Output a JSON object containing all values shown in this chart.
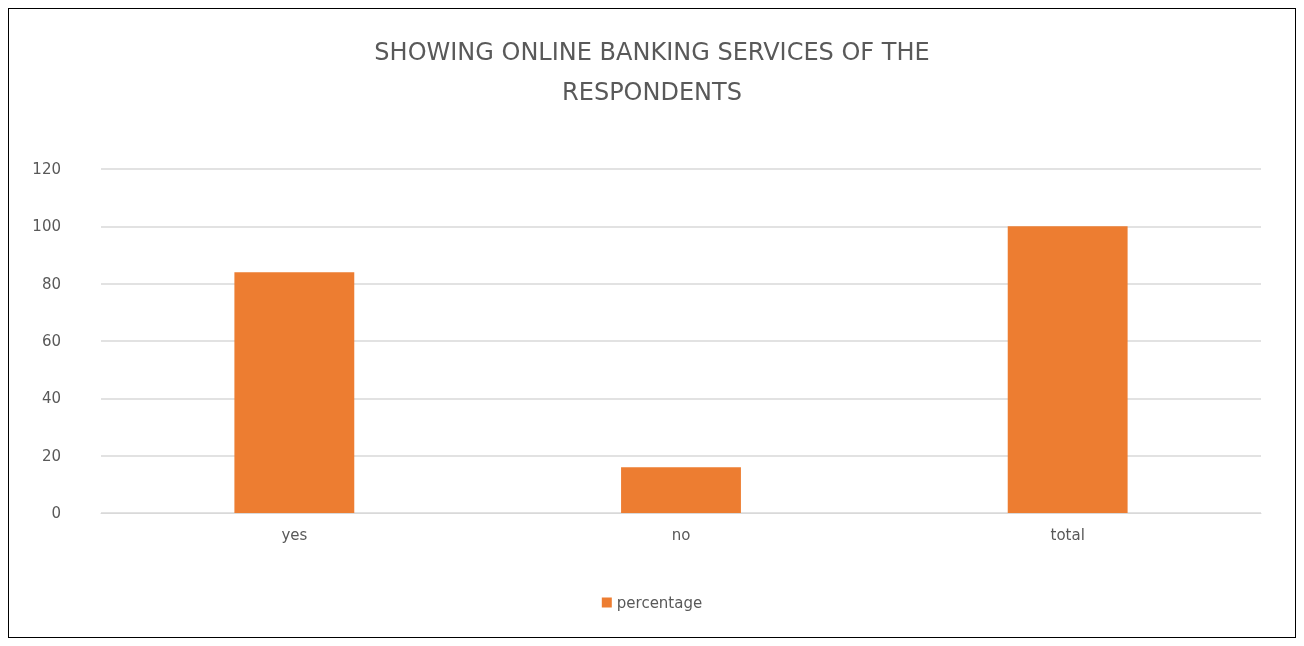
{
  "chart_data": {
    "type": "bar",
    "title": "SHOWING ONLINE BANKING SERVICES OF THE\nRESPONDENTS",
    "categories": [
      "yes",
      "no",
      "total"
    ],
    "series": [
      {
        "name": "percentage",
        "color": "#ed7d31",
        "values": [
          84,
          16,
          100
        ]
      }
    ],
    "ylim": [
      0,
      120
    ],
    "yticks": [
      0,
      20,
      40,
      60,
      80,
      100,
      120
    ],
    "grid": "y",
    "legend": "bottom"
  }
}
